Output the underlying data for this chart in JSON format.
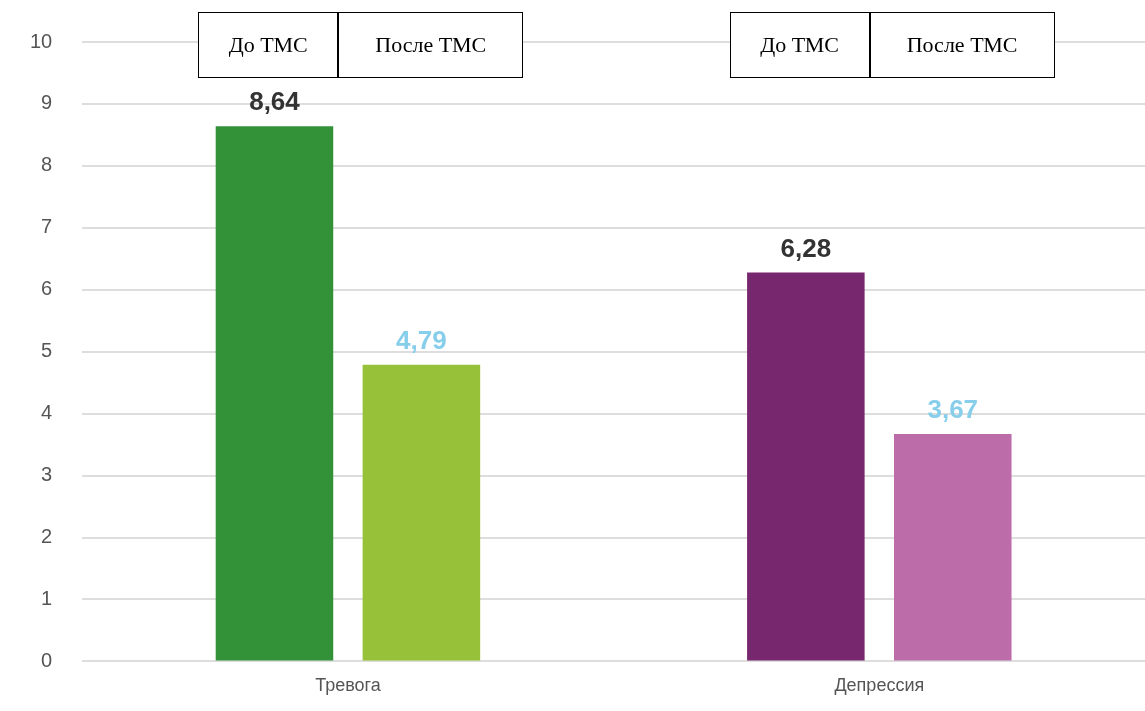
{
  "chart_data": {
    "type": "bar",
    "categories": [
      "Тревога",
      "Депрессия"
    ],
    "series": [
      {
        "colors": [
          "#339138",
          "#77276e"
        ],
        "values": [
          8.64,
          6.28
        ],
        "value_labels": [
          "8,64",
          "6,28"
        ]
      },
      {
        "colors": [
          "#97c139",
          "#bb6ca9"
        ],
        "values": [
          4.79,
          3.67
        ],
        "value_labels": [
          "4,79",
          "3,67"
        ]
      }
    ],
    "annotations": [
      "До ТМС",
      "После ТМС",
      "До ТМС",
      "После ТМС"
    ],
    "ylim": [
      0,
      10
    ],
    "yticks": [
      0,
      1,
      2,
      3,
      4,
      5,
      6,
      7,
      8,
      9,
      10
    ],
    "grid": "y",
    "legend": false
  }
}
